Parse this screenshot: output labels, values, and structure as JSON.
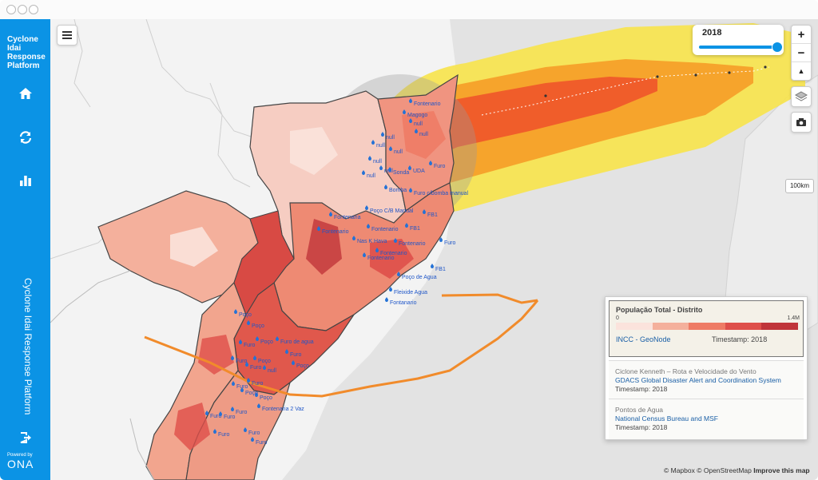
{
  "app": {
    "brand_line1": "Cyclone",
    "brand_line2": "Idai",
    "brand_line3": "Response",
    "brand_line4": "Platform",
    "vertical_title": "Cyclone Idai Response Platform",
    "powered_by": "Powered by",
    "powered_logo": "ONA",
    "accent_color": "#0b93e5"
  },
  "sidebar_icons": [
    "home-icon",
    "refresh-icon",
    "bar-chart-icon",
    "logout-icon"
  ],
  "map": {
    "year_value": "2018",
    "scale_label": "100km",
    "zoom_in": "+",
    "zoom_out": "−",
    "compass": "▲",
    "attribution": "© Mapbox © OpenStreetMap",
    "improve": "Improve this map",
    "water_points": [
      "Fontenario",
      "Magogo",
      "null",
      "null",
      "null",
      "null",
      "null",
      "null",
      "null",
      "null",
      "Sonda",
      "UDA",
      "Furo",
      "Bomba",
      "Furo c/bomba manual",
      "Poço C/B Manual",
      "Fontenaria",
      "Fontenario",
      "Fontenario",
      "Nas K Hava",
      "Fontenario",
      "Fontenario",
      "Fontenario",
      "Poço de Agua",
      "Fleixide Agua",
      "Fontanario",
      "FB1",
      "FB1",
      "FB1",
      "Furo",
      "Poço",
      "Poço",
      "Furo",
      "Poço",
      "Furo de agua",
      "Furo",
      "Furo",
      "Furo",
      "Poço",
      "null",
      "Furo",
      "Furo",
      "Poço",
      "Fontenaria 2 Vaz",
      "Furo",
      "Furo",
      "Furo",
      "Furo",
      "Furo",
      "Furo",
      "Poço",
      "Poço"
    ]
  },
  "legend": {
    "active_title": "População Total - Distrito",
    "scale_min": "0",
    "scale_max": "1.4M",
    "scale_colors": [
      "#fbe3dc",
      "#f4b09c",
      "#ee7b65",
      "#de4f4a",
      "#c0353a"
    ],
    "active_source": "INCC - GeoNode",
    "active_timestamp": "Timestamp: 2018",
    "layers": [
      {
        "title": "Ciclone Kenneth – Rota e Velocidade do Vento",
        "source": "GDACS Global Disaster Alert and Coordination System",
        "timestamp": "Timestamp: 2018"
      },
      {
        "title": "Pontos de Agua",
        "source": "National Census Bureau and MSF",
        "timestamp": "Timestamp: 2018"
      }
    ]
  }
}
